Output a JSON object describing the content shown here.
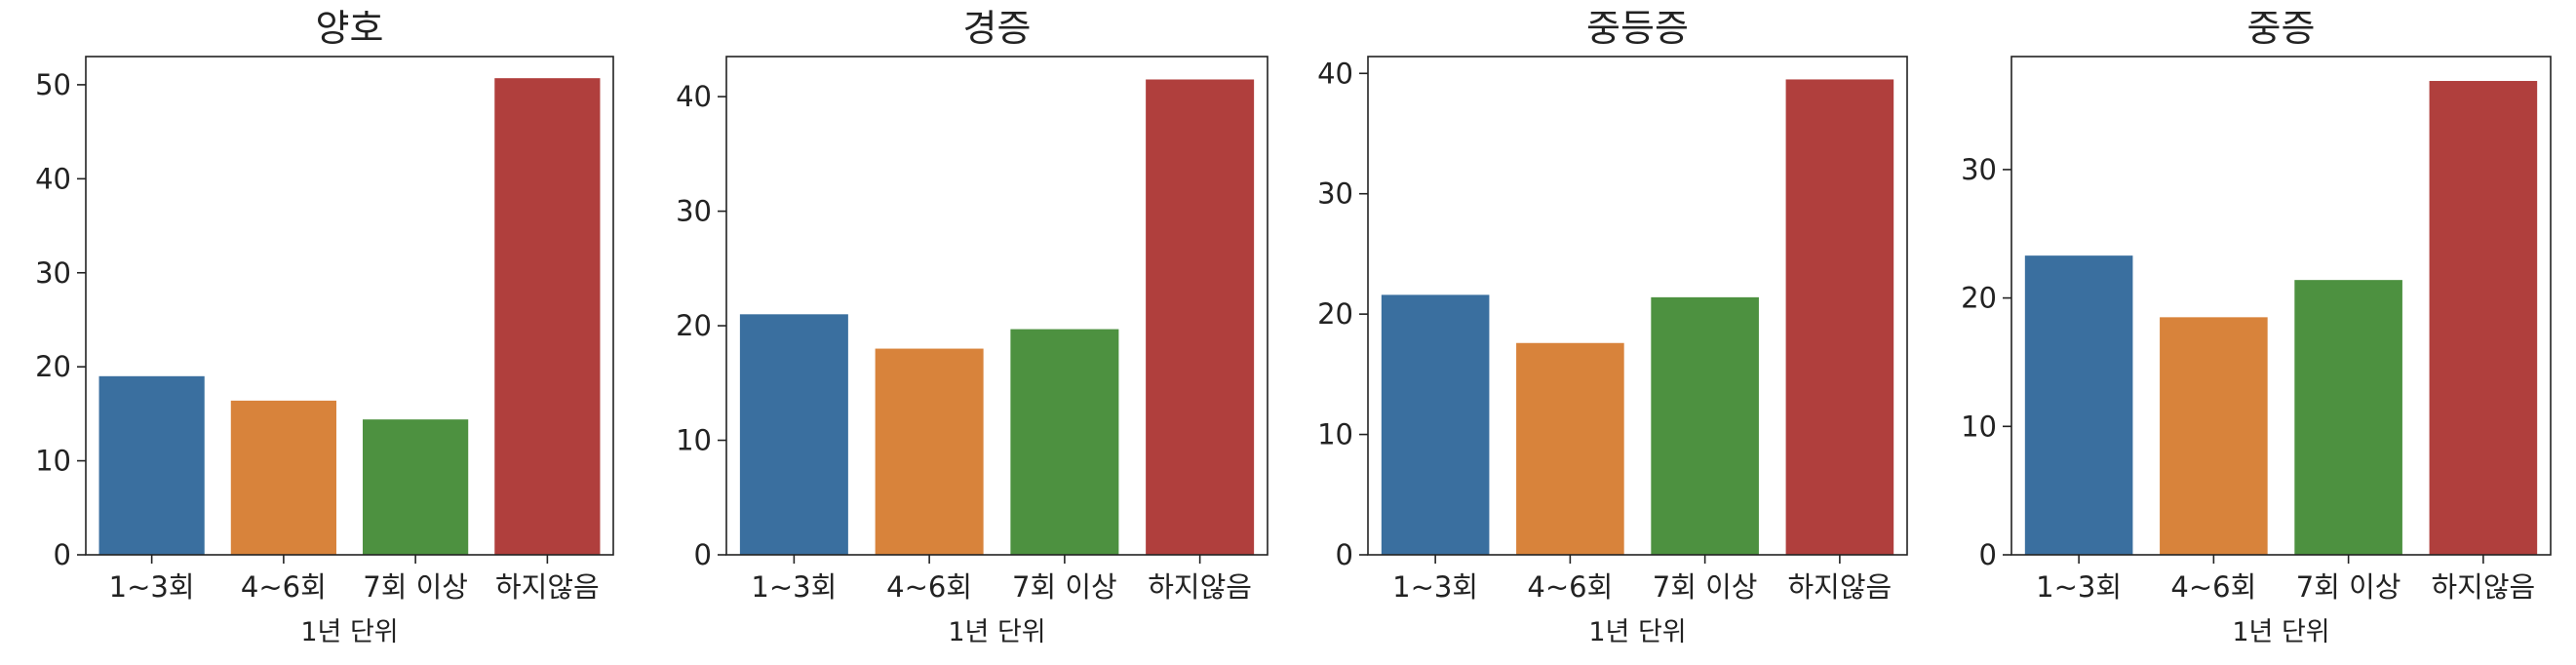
{
  "chart_data": [
    {
      "type": "bar",
      "title": "양호",
      "xlabel": "1년 단위",
      "ylabel": "",
      "categories": [
        "1~3회",
        "4~6회",
        "7회 이상",
        "하지않음"
      ],
      "values": [
        19.0,
        16.4,
        14.4,
        50.7
      ],
      "ylim": [
        0,
        53
      ],
      "yticks": [
        0,
        10,
        20,
        30,
        40,
        50
      ],
      "grid": false
    },
    {
      "type": "bar",
      "title": "경증",
      "xlabel": "1년 단위",
      "ylabel": "",
      "categories": [
        "1~3회",
        "4~6회",
        "7회 이상",
        "하지않음"
      ],
      "values": [
        21.0,
        18.0,
        19.7,
        41.5
      ],
      "ylim": [
        0,
        43.5
      ],
      "yticks": [
        0,
        10,
        20,
        30,
        40
      ],
      "grid": false
    },
    {
      "type": "bar",
      "title": "중등증",
      "xlabel": "1년 단위",
      "ylabel": "",
      "categories": [
        "1~3회",
        "4~6회",
        "7회 이상",
        "하지않음"
      ],
      "values": [
        21.6,
        17.6,
        21.4,
        39.5
      ],
      "ylim": [
        0,
        41.4
      ],
      "yticks": [
        0,
        10,
        20,
        30,
        40
      ],
      "grid": false
    },
    {
      "type": "bar",
      "title": "중증",
      "xlabel": "1년 단위",
      "ylabel": "",
      "categories": [
        "1~3회",
        "4~6회",
        "7회 이상",
        "하지않음"
      ],
      "values": [
        23.3,
        18.5,
        21.4,
        36.9
      ],
      "ylim": [
        0,
        38.8
      ],
      "yticks": [
        0,
        10,
        20,
        30
      ],
      "grid": false
    }
  ],
  "colors": [
    "#3a6f9f",
    "#d8833b",
    "#4d9140",
    "#b03f3d"
  ]
}
